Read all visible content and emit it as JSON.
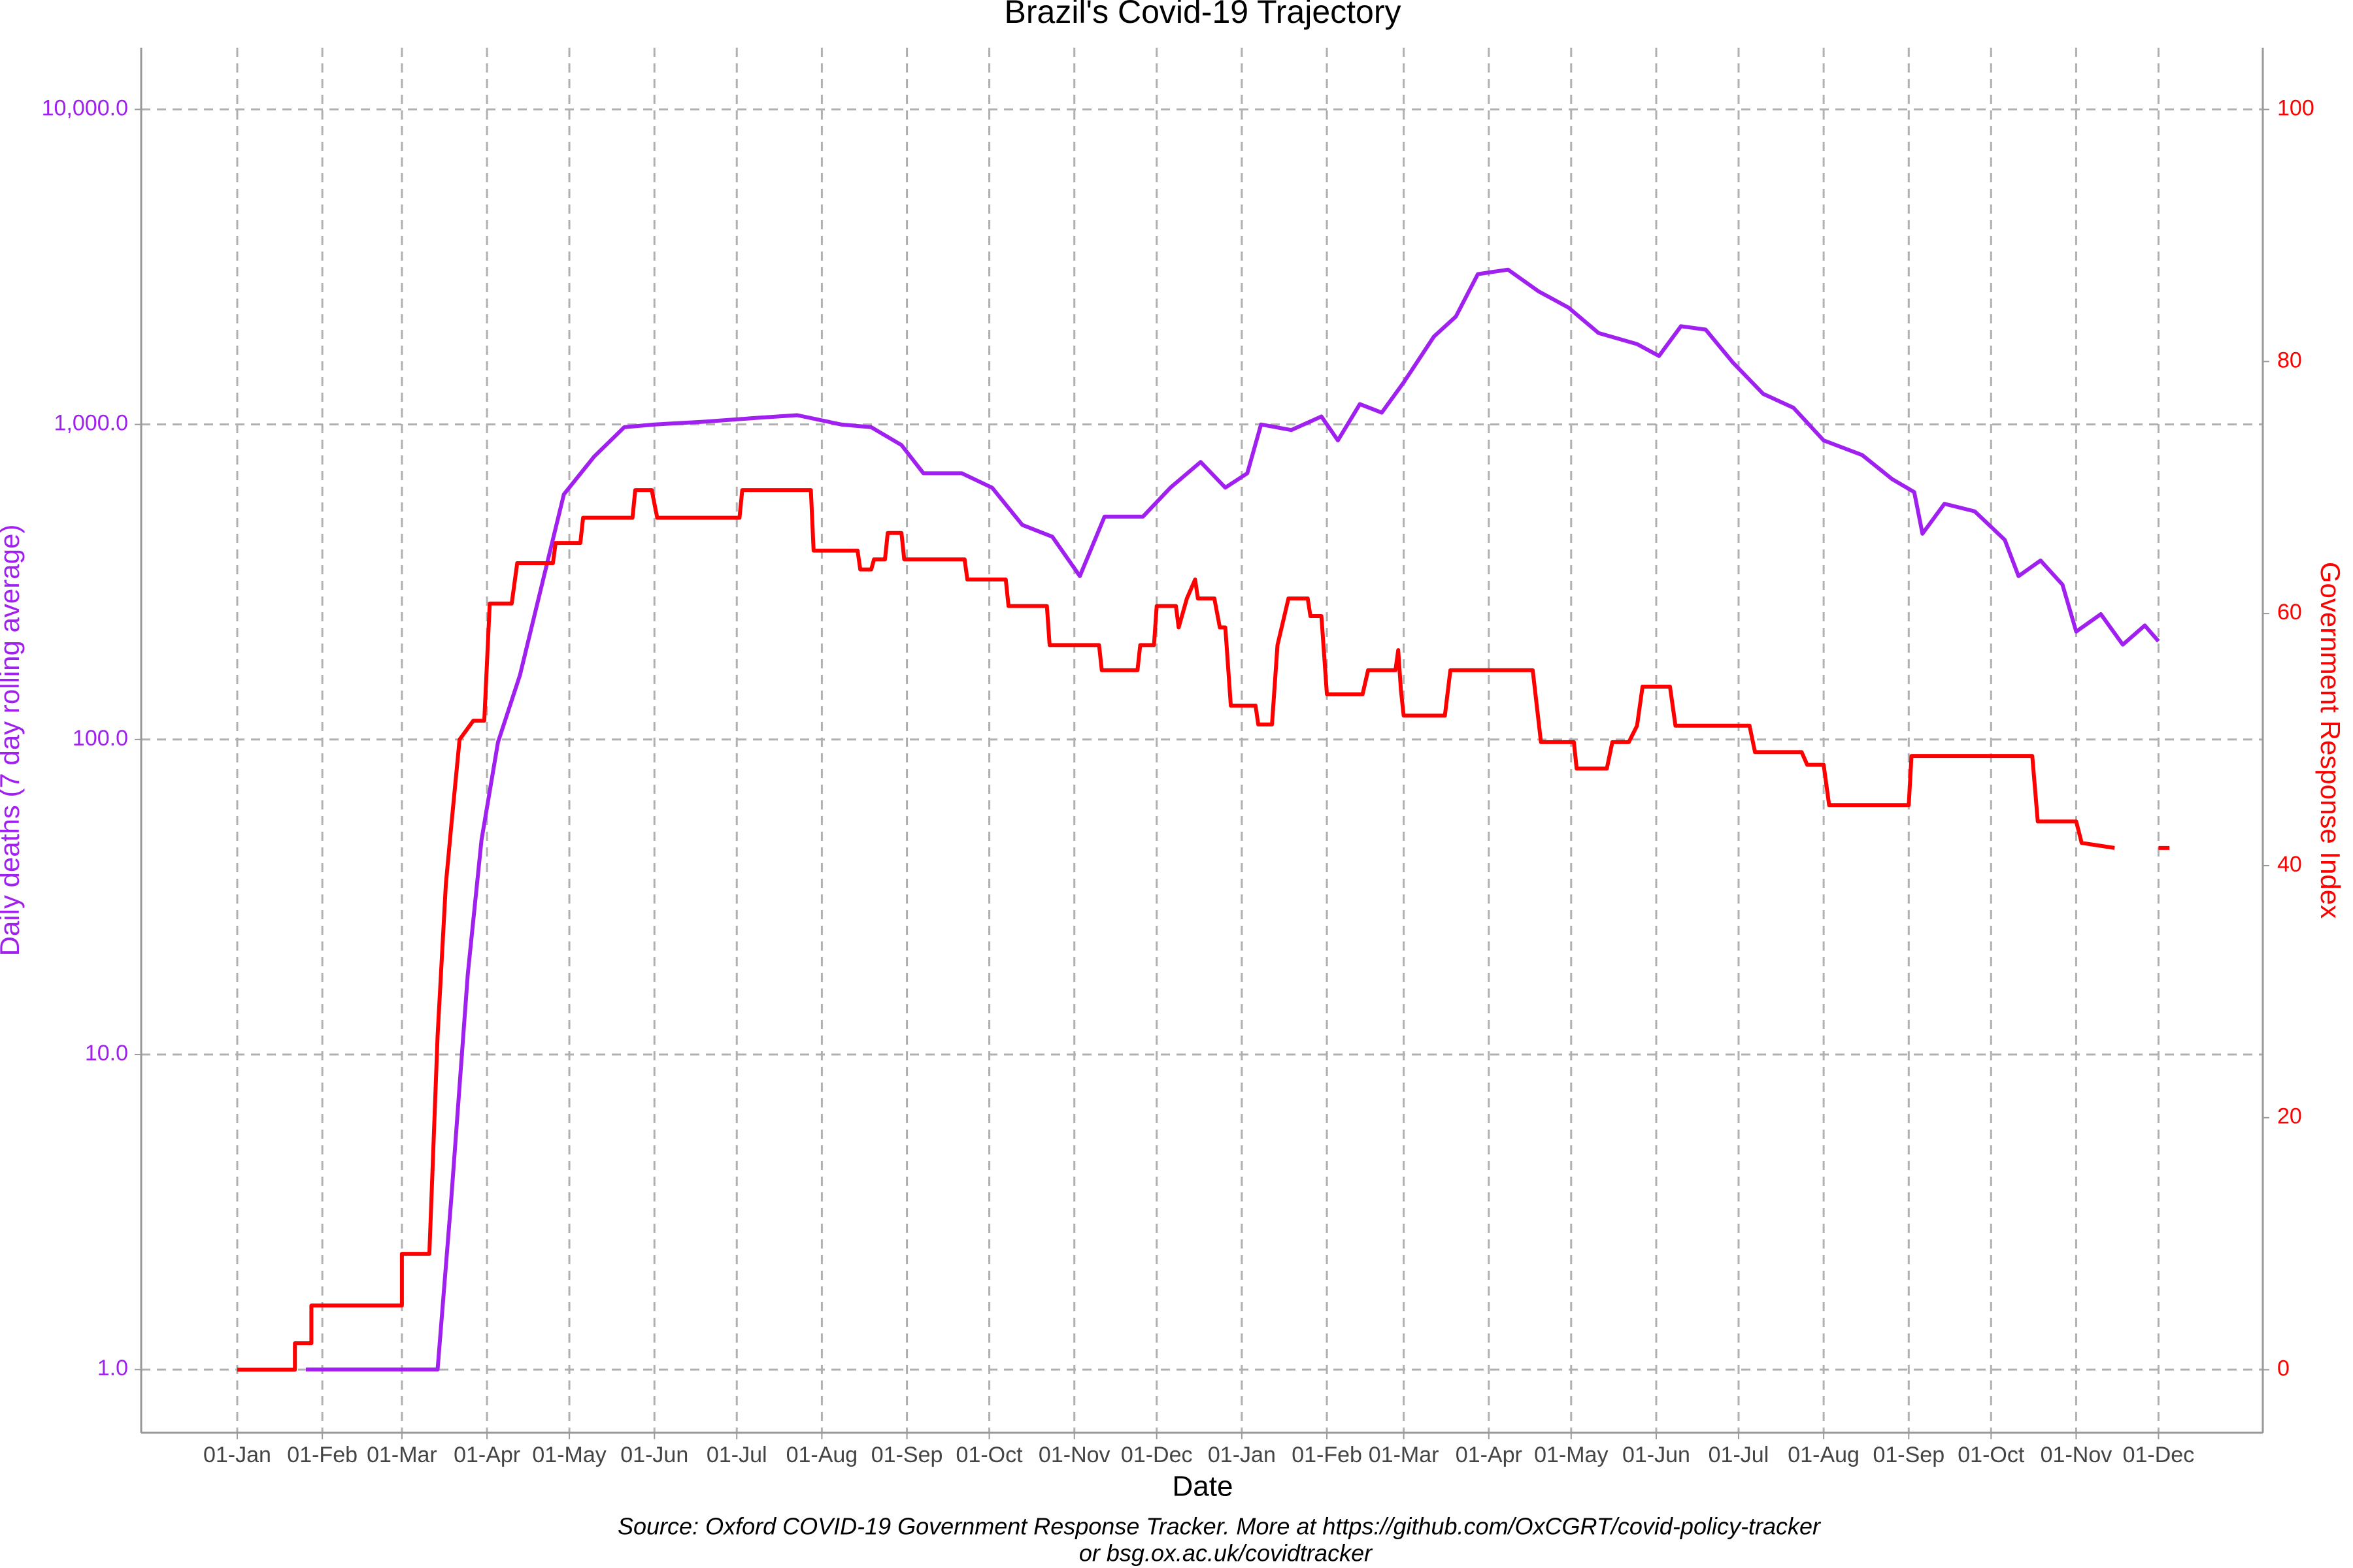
{
  "chart_data": {
    "type": "line",
    "title": "Brazil's Covid-19 Trajectory",
    "xlabel": "Date",
    "ylabel": "Daily deaths (7 day rolling average)",
    "y2label": "Government Response Index",
    "caption": [
      "Source: Oxford COVID-19 Government Response Tracker. More at https://github.com/OxCGRT/covid-policy-tracker",
      "or bsg.ox.ac.uk/covidtracker"
    ],
    "ylog": true,
    "grid": true,
    "xlim": [
      -35,
      738
    ],
    "ylim": [
      0.63,
      15700
    ],
    "y2lim": [
      -5,
      104.9
    ],
    "xticks": [
      {
        "value": 0,
        "label": "01-Jan"
      },
      {
        "value": 31,
        "label": "01-Feb"
      },
      {
        "value": 60,
        "label": "01-Mar"
      },
      {
        "value": 91,
        "label": "01-Apr"
      },
      {
        "value": 121,
        "label": "01-May"
      },
      {
        "value": 152,
        "label": "01-Jun"
      },
      {
        "value": 182,
        "label": "01-Jul"
      },
      {
        "value": 213,
        "label": "01-Aug"
      },
      {
        "value": 244,
        "label": "01-Sep"
      },
      {
        "value": 274,
        "label": "01-Oct"
      },
      {
        "value": 305,
        "label": "01-Nov"
      },
      {
        "value": 335,
        "label": "01-Dec"
      },
      {
        "value": 366,
        "label": "01-Jan"
      },
      {
        "value": 397,
        "label": "01-Feb"
      },
      {
        "value": 425,
        "label": "01-Mar"
      },
      {
        "value": 456,
        "label": "01-Apr"
      },
      {
        "value": 486,
        "label": "01-May"
      },
      {
        "value": 517,
        "label": "01-Jun"
      },
      {
        "value": 547,
        "label": "01-Jul"
      },
      {
        "value": 578,
        "label": "01-Aug"
      },
      {
        "value": 609,
        "label": "01-Sep"
      },
      {
        "value": 639,
        "label": "01-Oct"
      },
      {
        "value": 670,
        "label": "01-Nov"
      },
      {
        "value": 700,
        "label": "01-Dec"
      }
    ],
    "yticks": [
      {
        "value": 1,
        "label": "1.0"
      },
      {
        "value": 10,
        "label": "10.0"
      },
      {
        "value": 100,
        "label": "100.0"
      },
      {
        "value": 1000,
        "label": "1,000.0"
      },
      {
        "value": 10000,
        "label": "10,000.0"
      }
    ],
    "y2ticks": [
      0,
      20,
      40,
      60,
      80,
      100
    ],
    "series": [
      {
        "name": "Daily deaths (7 day rolling average)",
        "color": "#a020f0",
        "x": [
          25,
          73,
          78,
          84,
          89,
          95,
          103,
          111,
          119,
          130,
          141,
          152,
          170,
          190,
          204,
          220,
          231,
          242,
          250,
          264,
          275,
          286,
          297,
          307,
          316,
          330,
          340,
          351,
          360,
          368,
          373,
          384,
          395,
          401,
          409,
          417,
          425,
          436,
          444,
          452,
          463,
          474,
          485,
          496,
          510,
          518,
          526,
          535,
          545,
          556,
          567,
          578,
          592,
          603,
          611,
          614,
          622,
          633,
          644,
          649,
          657,
          665,
          670,
          679,
          687,
          695,
          700
        ],
        "values": [
          1,
          1,
          3.5,
          18,
          48,
          98,
          160,
          310,
          600,
          790,
          980,
          1000,
          1020,
          1050,
          1070,
          1000,
          980,
          860,
          700,
          700,
          630,
          480,
          440,
          330,
          510,
          510,
          630,
          760,
          630,
          700,
          1000,
          960,
          1060,
          890,
          1160,
          1090,
          1360,
          1900,
          2200,
          3000,
          3100,
          2650,
          2350,
          1950,
          1800,
          1650,
          2050,
          2000,
          1570,
          1250,
          1130,
          890,
          800,
          670,
          610,
          450,
          560,
          530,
          430,
          330,
          370,
          310,
          220,
          250,
          200,
          230,
          205
        ]
      },
      {
        "name": "Government Response Index",
        "color": "#ff0000",
        "axis": "y2",
        "x": [
          0,
          21,
          21,
          27,
          27,
          60,
          60,
          70,
          73,
          76,
          78,
          81,
          86,
          90,
          92,
          100,
          102,
          115,
          116,
          125,
          126,
          144,
          145,
          151,
          153,
          183,
          184,
          209,
          210,
          226,
          227,
          231,
          232,
          236,
          237,
          242,
          243,
          265,
          266,
          280,
          281,
          295,
          296,
          314,
          315,
          328,
          329,
          334,
          335,
          342,
          343,
          346,
          349,
          350,
          356,
          358,
          360,
          362,
          371,
          372,
          377,
          379,
          383,
          390,
          391,
          395,
          397,
          410,
          412,
          422,
          423,
          424,
          425,
          440,
          442,
          472,
          475,
          487,
          488,
          499,
          501,
          507,
          510,
          512,
          522,
          524,
          551,
          553,
          570,
          572,
          578,
          580,
          609,
          610,
          654,
          656,
          670,
          672,
          684,
          690,
          700,
          704
        ],
        "values": [
          0,
          0,
          2.1,
          2.1,
          5.1,
          5.1,
          9.2,
          9.2,
          26.5,
          38.5,
          43.2,
          50,
          51.5,
          51.5,
          60.8,
          60.8,
          64,
          64,
          65.6,
          65.6,
          67.6,
          67.6,
          69.8,
          69.8,
          67.6,
          67.6,
          69.8,
          69.8,
          65,
          65,
          63.5,
          63.5,
          64.3,
          64.3,
          66.4,
          66.4,
          64.3,
          64.3,
          62.7,
          62.7,
          60.6,
          60.6,
          57.5,
          57.5,
          55.5,
          55.5,
          57.5,
          57.5,
          60.6,
          60.6,
          58.9,
          61.2,
          62.7,
          61.2,
          61.2,
          58.9,
          58.9,
          52.7,
          52.7,
          51.2,
          51.2,
          57.5,
          61.2,
          61.2,
          59.8,
          59.8,
          53.6,
          53.6,
          55.5,
          55.5,
          57.1,
          53.9,
          51.9,
          51.9,
          55.5,
          55.5,
          49.8,
          49.8,
          47.7,
          47.7,
          49.8,
          49.8,
          51.1,
          54.2,
          54.2,
          51.1,
          51.1,
          49,
          49,
          48,
          48,
          44.8,
          44.8,
          48.7,
          48.7,
          43.5,
          43.5,
          41.8,
          41.4,
          null,
          41.4,
          41.4
        ]
      }
    ]
  }
}
